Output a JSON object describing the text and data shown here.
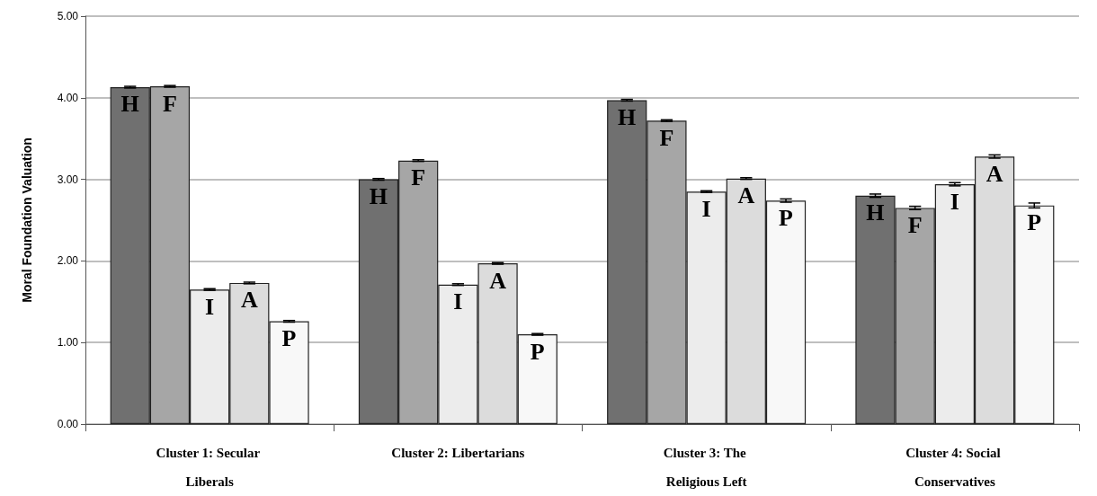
{
  "chart_data": {
    "type": "bar",
    "ylabel": "Moral Foundation Valuation",
    "categories": [
      "Cluster 1: Secular Liberals",
      "Cluster 2: Libertarians",
      "Cluster 3: The Religious Left",
      "Cluster 4: Social Conservatives"
    ],
    "series": [
      {
        "name": "H",
        "color": "#707070",
        "values": [
          4.13,
          3.0,
          3.97,
          2.8
        ],
        "errors": [
          0.01,
          0.01,
          0.01,
          0.02
        ]
      },
      {
        "name": "F",
        "color": "#a6a6a6",
        "values": [
          4.14,
          3.23,
          3.72,
          2.65
        ],
        "errors": [
          0.01,
          0.01,
          0.01,
          0.02
        ]
      },
      {
        "name": "I",
        "color": "#ececec",
        "values": [
          1.65,
          1.71,
          2.85,
          2.94
        ],
        "errors": [
          0.01,
          0.01,
          0.01,
          0.02
        ]
      },
      {
        "name": "A",
        "color": "#dcdcdc",
        "values": [
          1.73,
          1.97,
          3.01,
          3.28
        ],
        "errors": [
          0.01,
          0.01,
          0.01,
          0.02
        ]
      },
      {
        "name": "P",
        "color": "#f8f8f8",
        "values": [
          1.26,
          1.1,
          2.74,
          2.68
        ],
        "errors": [
          0.01,
          0.01,
          0.02,
          0.03
        ]
      }
    ],
    "ylim": [
      0,
      5
    ],
    "yticks": [
      {
        "value": 0,
        "label": "0.00"
      },
      {
        "value": 1,
        "label": "1.00"
      },
      {
        "value": 2,
        "label": "2.00"
      },
      {
        "value": 3,
        "label": "3.00"
      },
      {
        "value": 4,
        "label": "4.00"
      },
      {
        "value": 5,
        "label": "5.00"
      }
    ],
    "grid": "y",
    "legend": false
  }
}
